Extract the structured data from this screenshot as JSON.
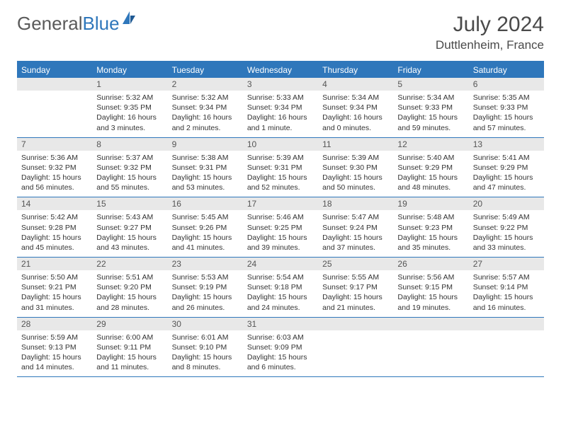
{
  "logo": {
    "text1": "General",
    "text2": "Blue"
  },
  "header": {
    "month": "July 2024",
    "location": "Duttlenheim, France"
  },
  "colors": {
    "brand_blue": "#2f77bb",
    "header_text": "#4a4a4a",
    "daynum_bg": "#e8e8e8",
    "body_text": "#333333"
  },
  "dow": [
    "Sunday",
    "Monday",
    "Tuesday",
    "Wednesday",
    "Thursday",
    "Friday",
    "Saturday"
  ],
  "weeks": [
    [
      {
        "n": "",
        "lines": []
      },
      {
        "n": "1",
        "lines": [
          "Sunrise: 5:32 AM",
          "Sunset: 9:35 PM",
          "Daylight: 16 hours and 3 minutes."
        ]
      },
      {
        "n": "2",
        "lines": [
          "Sunrise: 5:32 AM",
          "Sunset: 9:34 PM",
          "Daylight: 16 hours and 2 minutes."
        ]
      },
      {
        "n": "3",
        "lines": [
          "Sunrise: 5:33 AM",
          "Sunset: 9:34 PM",
          "Daylight: 16 hours and 1 minute."
        ]
      },
      {
        "n": "4",
        "lines": [
          "Sunrise: 5:34 AM",
          "Sunset: 9:34 PM",
          "Daylight: 16 hours and 0 minutes."
        ]
      },
      {
        "n": "5",
        "lines": [
          "Sunrise: 5:34 AM",
          "Sunset: 9:33 PM",
          "Daylight: 15 hours and 59 minutes."
        ]
      },
      {
        "n": "6",
        "lines": [
          "Sunrise: 5:35 AM",
          "Sunset: 9:33 PM",
          "Daylight: 15 hours and 57 minutes."
        ]
      }
    ],
    [
      {
        "n": "7",
        "lines": [
          "Sunrise: 5:36 AM",
          "Sunset: 9:32 PM",
          "Daylight: 15 hours and 56 minutes."
        ]
      },
      {
        "n": "8",
        "lines": [
          "Sunrise: 5:37 AM",
          "Sunset: 9:32 PM",
          "Daylight: 15 hours and 55 minutes."
        ]
      },
      {
        "n": "9",
        "lines": [
          "Sunrise: 5:38 AM",
          "Sunset: 9:31 PM",
          "Daylight: 15 hours and 53 minutes."
        ]
      },
      {
        "n": "10",
        "lines": [
          "Sunrise: 5:39 AM",
          "Sunset: 9:31 PM",
          "Daylight: 15 hours and 52 minutes."
        ]
      },
      {
        "n": "11",
        "lines": [
          "Sunrise: 5:39 AM",
          "Sunset: 9:30 PM",
          "Daylight: 15 hours and 50 minutes."
        ]
      },
      {
        "n": "12",
        "lines": [
          "Sunrise: 5:40 AM",
          "Sunset: 9:29 PM",
          "Daylight: 15 hours and 48 minutes."
        ]
      },
      {
        "n": "13",
        "lines": [
          "Sunrise: 5:41 AM",
          "Sunset: 9:29 PM",
          "Daylight: 15 hours and 47 minutes."
        ]
      }
    ],
    [
      {
        "n": "14",
        "lines": [
          "Sunrise: 5:42 AM",
          "Sunset: 9:28 PM",
          "Daylight: 15 hours and 45 minutes."
        ]
      },
      {
        "n": "15",
        "lines": [
          "Sunrise: 5:43 AM",
          "Sunset: 9:27 PM",
          "Daylight: 15 hours and 43 minutes."
        ]
      },
      {
        "n": "16",
        "lines": [
          "Sunrise: 5:45 AM",
          "Sunset: 9:26 PM",
          "Daylight: 15 hours and 41 minutes."
        ]
      },
      {
        "n": "17",
        "lines": [
          "Sunrise: 5:46 AM",
          "Sunset: 9:25 PM",
          "Daylight: 15 hours and 39 minutes."
        ]
      },
      {
        "n": "18",
        "lines": [
          "Sunrise: 5:47 AM",
          "Sunset: 9:24 PM",
          "Daylight: 15 hours and 37 minutes."
        ]
      },
      {
        "n": "19",
        "lines": [
          "Sunrise: 5:48 AM",
          "Sunset: 9:23 PM",
          "Daylight: 15 hours and 35 minutes."
        ]
      },
      {
        "n": "20",
        "lines": [
          "Sunrise: 5:49 AM",
          "Sunset: 9:22 PM",
          "Daylight: 15 hours and 33 minutes."
        ]
      }
    ],
    [
      {
        "n": "21",
        "lines": [
          "Sunrise: 5:50 AM",
          "Sunset: 9:21 PM",
          "Daylight: 15 hours and 31 minutes."
        ]
      },
      {
        "n": "22",
        "lines": [
          "Sunrise: 5:51 AM",
          "Sunset: 9:20 PM",
          "Daylight: 15 hours and 28 minutes."
        ]
      },
      {
        "n": "23",
        "lines": [
          "Sunrise: 5:53 AM",
          "Sunset: 9:19 PM",
          "Daylight: 15 hours and 26 minutes."
        ]
      },
      {
        "n": "24",
        "lines": [
          "Sunrise: 5:54 AM",
          "Sunset: 9:18 PM",
          "Daylight: 15 hours and 24 minutes."
        ]
      },
      {
        "n": "25",
        "lines": [
          "Sunrise: 5:55 AM",
          "Sunset: 9:17 PM",
          "Daylight: 15 hours and 21 minutes."
        ]
      },
      {
        "n": "26",
        "lines": [
          "Sunrise: 5:56 AM",
          "Sunset: 9:15 PM",
          "Daylight: 15 hours and 19 minutes."
        ]
      },
      {
        "n": "27",
        "lines": [
          "Sunrise: 5:57 AM",
          "Sunset: 9:14 PM",
          "Daylight: 15 hours and 16 minutes."
        ]
      }
    ],
    [
      {
        "n": "28",
        "lines": [
          "Sunrise: 5:59 AM",
          "Sunset: 9:13 PM",
          "Daylight: 15 hours and 14 minutes."
        ]
      },
      {
        "n": "29",
        "lines": [
          "Sunrise: 6:00 AM",
          "Sunset: 9:11 PM",
          "Daylight: 15 hours and 11 minutes."
        ]
      },
      {
        "n": "30",
        "lines": [
          "Sunrise: 6:01 AM",
          "Sunset: 9:10 PM",
          "Daylight: 15 hours and 8 minutes."
        ]
      },
      {
        "n": "31",
        "lines": [
          "Sunrise: 6:03 AM",
          "Sunset: 9:09 PM",
          "Daylight: 15 hours and 6 minutes."
        ]
      },
      {
        "n": "",
        "lines": []
      },
      {
        "n": "",
        "lines": []
      },
      {
        "n": "",
        "lines": []
      }
    ]
  ]
}
